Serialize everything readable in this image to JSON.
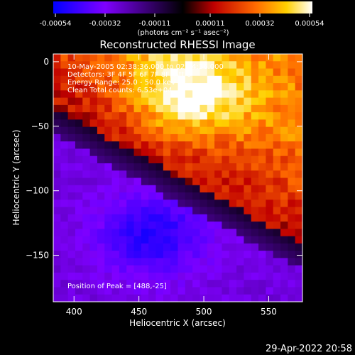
{
  "colorbar": {
    "ticks": [
      "-0.00054",
      "-0.00032",
      "-0.00011",
      "0.00011",
      "0.00032",
      "0.00054"
    ],
    "units": "(photons cm⁻² s⁻¹ asec⁻²)",
    "range": [
      -0.00054,
      0.00054
    ],
    "colors": [
      "#0000ff",
      "#7f00ff",
      "#000000",
      "#c00000",
      "#ff6a00",
      "#ffd000",
      "#ffffff"
    ]
  },
  "chart_data": {
    "type": "heatmap",
    "title": "Reconstructed RHESSI Image",
    "xlabel": "Heliocentric X (arcsec)",
    "ylabel": "Heliocentric Y (arcsec)",
    "xlim": [
      384,
      576
    ],
    "ylim": [
      -186,
      6
    ],
    "xticks": [
      400,
      450,
      500,
      550
    ],
    "xtick_labels": [
      "400",
      "450",
      "500",
      "550"
    ],
    "yticks": [
      0,
      -50,
      -100,
      -150
    ],
    "ytick_labels": [
      "0",
      "−50",
      "−100",
      "−150"
    ],
    "annotations": [
      "10-May-2005 02:38:36.000 to 02:44:36.000",
      "Detectors: 3F 4F 5F 6F 7F 8F, Att 0",
      "Energy Range: 25.0 - 50.0 keV",
      "Clean    Total counts: 6.53e+04"
    ],
    "peak_label": "Position of Peak = [488,-25]",
    "peak": [
      488,
      -25
    ]
  },
  "footer": {
    "date": "29-Apr-2022 20:58"
  }
}
